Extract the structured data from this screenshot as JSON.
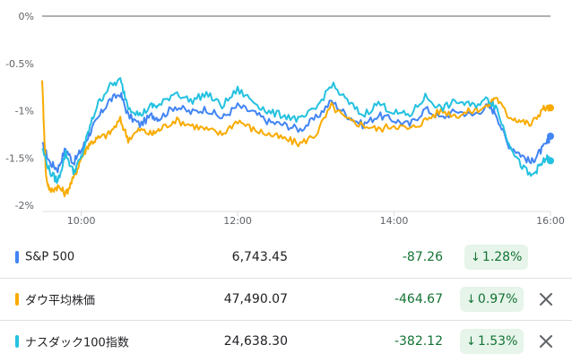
{
  "chart_data": {
    "type": "line",
    "ylabel": "",
    "xlabel": "",
    "yticks": [
      "0%",
      "-0.5%",
      "-1%",
      "-1.5%",
      "-2%"
    ],
    "yvalues": [
      0,
      -0.5,
      -1,
      -1.5,
      -2
    ],
    "ylim": [
      -2,
      0
    ],
    "xticks": [
      "10:00",
      "12:00",
      "14:00",
      "16:00"
    ],
    "xtick_hours": [
      10,
      12,
      14,
      16
    ],
    "xlim_hours": [
      9.5,
      16.0
    ],
    "baseline": 0,
    "series": [
      {
        "name": "S&P 500",
        "color": "#4285f4",
        "t": [
          9.5,
          9.6,
          9.7,
          9.8,
          9.9,
          10.0,
          10.1,
          10.2,
          10.35,
          10.5,
          10.6,
          10.75,
          10.9,
          11.0,
          11.2,
          11.4,
          11.6,
          11.8,
          12.0,
          12.2,
          12.4,
          12.6,
          12.8,
          13.0,
          13.2,
          13.4,
          13.6,
          13.8,
          14.0,
          14.2,
          14.4,
          14.6,
          14.8,
          15.0,
          15.2,
          15.3,
          15.45,
          15.6,
          15.75,
          15.85,
          15.95,
          16.0
        ],
        "values": [
          -1.35,
          -1.55,
          -1.62,
          -1.4,
          -1.55,
          -1.42,
          -1.25,
          -1.1,
          -0.9,
          -0.82,
          -1.05,
          -1.15,
          -1.05,
          -1.08,
          -0.95,
          -1.02,
          -0.98,
          -1.08,
          -0.95,
          -1.02,
          -1.12,
          -1.15,
          -1.2,
          -1.08,
          -0.9,
          -1.05,
          -1.15,
          -1.05,
          -1.1,
          -1.15,
          -0.98,
          -1.08,
          -1.0,
          -1.05,
          -0.95,
          -1.02,
          -1.35,
          -1.45,
          -1.55,
          -1.45,
          -1.35,
          -1.27
        ]
      },
      {
        "name": "ダウ平均株価",
        "color": "#f9ab00",
        "t": [
          9.5,
          9.55,
          9.6,
          9.7,
          9.8,
          9.9,
          10.0,
          10.1,
          10.2,
          10.35,
          10.5,
          10.6,
          10.75,
          10.9,
          11.0,
          11.2,
          11.4,
          11.6,
          11.8,
          12.0,
          12.2,
          12.4,
          12.6,
          12.8,
          13.0,
          13.2,
          13.4,
          13.6,
          13.8,
          14.0,
          14.2,
          14.4,
          14.6,
          14.8,
          15.0,
          15.2,
          15.3,
          15.45,
          15.6,
          15.75,
          15.9,
          16.0
        ],
        "values": [
          -0.68,
          -1.7,
          -1.85,
          -1.8,
          -1.88,
          -1.72,
          -1.5,
          -1.35,
          -1.3,
          -1.25,
          -1.1,
          -1.3,
          -1.2,
          -1.25,
          -1.2,
          -1.1,
          -1.15,
          -1.2,
          -1.25,
          -1.1,
          -1.2,
          -1.25,
          -1.3,
          -1.35,
          -1.25,
          -0.95,
          -1.1,
          -1.15,
          -1.2,
          -1.15,
          -1.2,
          -1.1,
          -1.0,
          -1.05,
          -1.0,
          -0.95,
          -0.85,
          -1.05,
          -1.1,
          -1.15,
          -0.98,
          -0.97
        ]
      },
      {
        "name": "ナスダック100指数",
        "color": "#24c1e0",
        "t": [
          9.5,
          9.6,
          9.7,
          9.8,
          9.9,
          10.0,
          10.1,
          10.2,
          10.35,
          10.5,
          10.6,
          10.75,
          10.9,
          11.0,
          11.2,
          11.4,
          11.6,
          11.8,
          12.0,
          12.2,
          12.4,
          12.6,
          12.8,
          13.0,
          13.2,
          13.4,
          13.6,
          13.8,
          14.0,
          14.2,
          14.4,
          14.6,
          14.8,
          15.0,
          15.2,
          15.3,
          15.45,
          15.6,
          15.75,
          15.85,
          15.95,
          16.0
        ],
        "values": [
          -1.4,
          -1.65,
          -1.75,
          -1.45,
          -1.65,
          -1.5,
          -1.2,
          -0.95,
          -0.75,
          -0.68,
          -0.95,
          -1.05,
          -0.95,
          -0.95,
          -0.8,
          -0.9,
          -0.82,
          -0.95,
          -0.78,
          -0.9,
          -1.02,
          -1.05,
          -1.1,
          -0.98,
          -0.72,
          -0.9,
          -1.05,
          -0.92,
          -1.02,
          -1.05,
          -0.85,
          -0.98,
          -0.9,
          -0.95,
          -0.88,
          -0.95,
          -1.3,
          -1.55,
          -1.7,
          -1.6,
          -1.5,
          -1.53
        ]
      }
    ]
  },
  "rows": [
    {
      "name": "S&P 500",
      "price": "6,743.45",
      "change": "-87.26",
      "pct": "1.28%",
      "arrow": "↓",
      "color": "#4285f4",
      "removable": false
    },
    {
      "name": "ダウ平均株価",
      "price": "47,490.07",
      "change": "-464.67",
      "pct": "0.97%",
      "arrow": "↓",
      "color": "#f9ab00",
      "removable": true
    },
    {
      "name": "ナスダック100指数",
      "price": "24,638.30",
      "change": "-382.12",
      "pct": "1.53%",
      "arrow": "↓",
      "color": "#24c1e0",
      "removable": true
    }
  ],
  "icons": {
    "close": "close-icon"
  }
}
